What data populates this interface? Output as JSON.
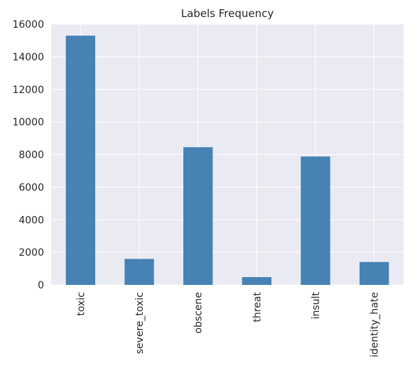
{
  "chart_data": {
    "type": "bar",
    "title": "Labels Frequency",
    "xlabel": "",
    "ylabel": "",
    "categories": [
      "toxic",
      "severe_toxic",
      "obscene",
      "threat",
      "insult",
      "identity_hate"
    ],
    "values": [
      15294,
      1595,
      8449,
      478,
      7877,
      1405
    ],
    "ylim": [
      0,
      16000
    ],
    "yticks": [
      0,
      2000,
      4000,
      6000,
      8000,
      10000,
      12000,
      14000,
      16000
    ],
    "grid": true,
    "legend": "none",
    "colors": {
      "bar": "#4682b4",
      "plot_background": "#eaeaf2",
      "grid": "#ffffff",
      "text": "#262626"
    }
  }
}
